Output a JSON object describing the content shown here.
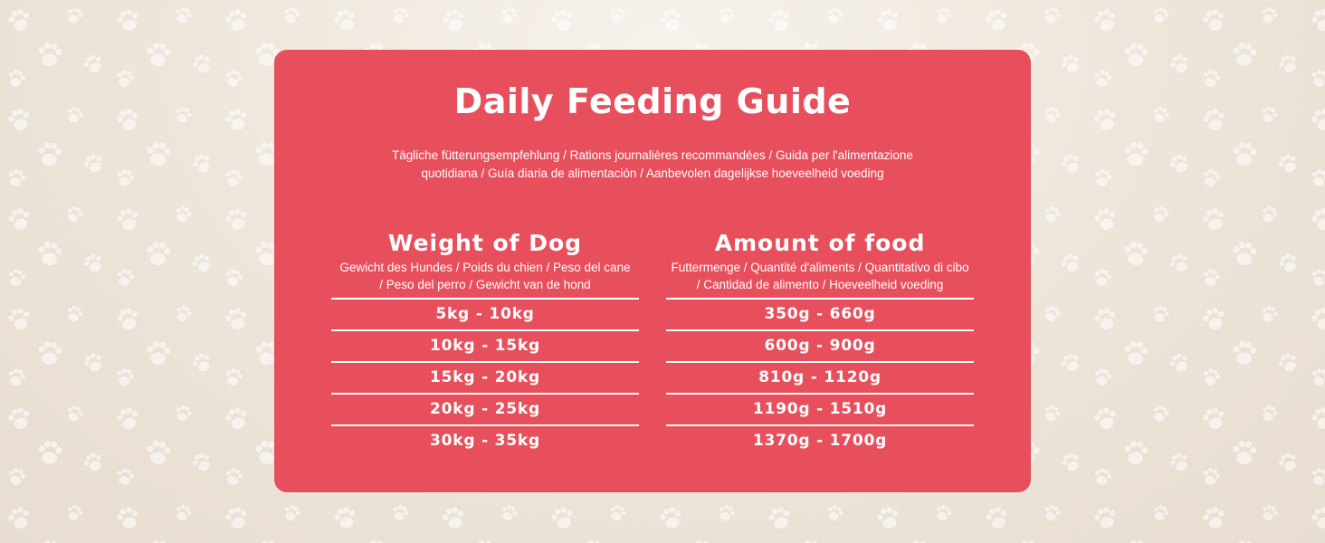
{
  "colors": {
    "card_background": "#e84f5d",
    "text": "#ffffff",
    "page_background": "#ede5da",
    "paw_print": "#ffffff"
  },
  "background_icon": "paw-print-icon",
  "guide": {
    "title": "Daily Feeding Guide",
    "subtitle_line1": "Tägliche fütterungsempfehlung  / Rations journalières recommandées / Guida per l'alimentazione",
    "subtitle_line2": "quotidiana / Guía diaria de alimentación / Aanbevolen dagelijkse hoeveelheid voeding"
  },
  "weight_column": {
    "heading": "Weight of Dog",
    "sub_line1": "Gewicht des Hundes / Poids du chien / Peso del cane",
    "sub_line2": "/ Peso del perro / Gewicht van de hond",
    "values": [
      "5kg - 10kg",
      "10kg - 15kg",
      "15kg - 20kg",
      "20kg - 25kg",
      "30kg - 35kg"
    ]
  },
  "food_column": {
    "heading": "Amount of food",
    "sub_line1": "Futtermenge / Quantité d'aliments / Quantitativo di cibo",
    "sub_line2": "/ Cantidad de alimento / Hoeveelheid voeding",
    "values": [
      "350g - 660g",
      "600g - 900g",
      "810g - 1120g",
      "1190g - 1510g",
      "1370g - 1700g"
    ]
  }
}
